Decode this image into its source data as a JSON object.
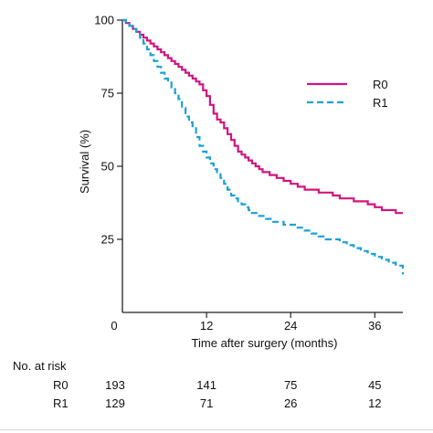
{
  "chart_data": {
    "type": "line",
    "step": true,
    "title": "",
    "xlabel": "Time after surgery (months)",
    "ylabel": "Survival (%)",
    "xlim": [
      0,
      40
    ],
    "ylim": [
      0,
      100
    ],
    "x_ticks": [
      0,
      12,
      24,
      36
    ],
    "y_ticks": [
      25,
      50,
      75,
      100
    ],
    "x_tick_labels": [
      "0",
      "12",
      "24",
      "36"
    ],
    "y_tick_labels": [
      "25",
      "50",
      "75",
      "100"
    ],
    "grid": false,
    "legend_position": "top-right",
    "series": [
      {
        "name": "R0",
        "color": "#d0157f",
        "line_style": "solid",
        "x": [
          0,
          0.5,
          1,
          1.5,
          2,
          2.5,
          3,
          3.5,
          4,
          4.5,
          5,
          5.5,
          6,
          6.5,
          7,
          7.5,
          8,
          8.5,
          9,
          9.5,
          10,
          10.5,
          11,
          11.5,
          12,
          12.5,
          13,
          13.5,
          14,
          14.5,
          15,
          15.5,
          16,
          16.5,
          17,
          17.5,
          18,
          18.5,
          19,
          19.5,
          20,
          20.5,
          21,
          21.5,
          22,
          22.5,
          23,
          23.5,
          24,
          25,
          26,
          27,
          28,
          29,
          30,
          31,
          32,
          33,
          34,
          35,
          36,
          37,
          38,
          39,
          40
        ],
        "y": [
          100,
          99,
          98,
          97,
          96,
          95,
          94,
          93,
          92,
          91,
          90,
          89,
          88,
          87,
          86,
          85,
          84,
          83,
          82,
          81,
          80,
          79,
          78,
          76,
          74,
          71,
          68,
          66,
          65,
          63,
          61,
          59,
          57,
          55,
          54,
          53,
          52,
          51,
          50,
          49,
          48,
          48,
          47,
          47,
          46,
          46,
          45,
          45,
          44,
          43,
          42,
          42,
          41,
          41,
          40,
          39,
          39,
          38,
          38,
          37,
          36,
          35,
          35,
          34,
          34
        ]
      },
      {
        "name": "R1",
        "color": "#1aa0d8",
        "line_style": "dashed",
        "x": [
          0,
          0.5,
          1,
          1.5,
          2,
          2.5,
          3,
          3.5,
          4,
          4.5,
          5,
          5.5,
          6,
          6.5,
          7,
          7.5,
          8,
          8.5,
          9,
          9.5,
          10,
          10.5,
          11,
          11.5,
          12,
          12.5,
          13,
          13.5,
          14,
          14.5,
          15,
          15.5,
          16,
          16.5,
          17,
          17.5,
          18,
          18.5,
          19,
          19.5,
          20,
          20.5,
          21,
          21.5,
          22,
          23,
          24,
          25,
          26,
          27,
          28,
          29,
          30,
          31,
          32,
          33,
          34,
          35,
          36,
          37,
          38,
          39,
          40
        ],
        "y": [
          100,
          99,
          98,
          97,
          96,
          94,
          92,
          90,
          88,
          86,
          84,
          82,
          80,
          79,
          77,
          75,
          73,
          70,
          67,
          65,
          63,
          60,
          57,
          55,
          53,
          51,
          49,
          48,
          46,
          44,
          42,
          40,
          39,
          38,
          37,
          36,
          35,
          34,
          34,
          33,
          33,
          32,
          32,
          31,
          31,
          30,
          30,
          29,
          28,
          27,
          26,
          25,
          25,
          24,
          23,
          22,
          21,
          20,
          19,
          18,
          17,
          16,
          13
        ]
      }
    ]
  },
  "risk_table": {
    "heading": "No. at risk",
    "rows": [
      {
        "label": "R0",
        "values": [
          "193",
          "141",
          "75",
          "45"
        ]
      },
      {
        "label": "R1",
        "values": [
          "129",
          "71",
          "26",
          "12"
        ]
      }
    ]
  }
}
